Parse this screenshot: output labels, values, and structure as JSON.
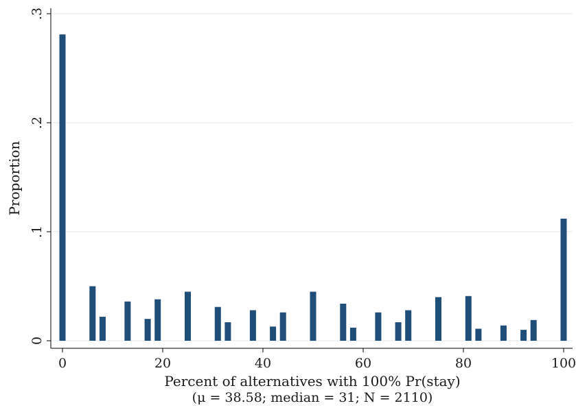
{
  "chart_data": {
    "type": "bar",
    "title": "",
    "xlabel": "Percent of alternatives with 100% Pr(stay)",
    "note": "(μ = 38.58; median = 31; N = 2110)",
    "ylabel": "Proportion",
    "xlim": [
      0,
      100
    ],
    "ylim": [
      0,
      0.3
    ],
    "xticks": [
      0,
      20,
      40,
      60,
      80,
      100
    ],
    "xtick_labels": [
      "0",
      "20",
      "40",
      "60",
      "80",
      "100"
    ],
    "yticks": [
      0,
      0.1,
      0.2,
      0.3
    ],
    "ytick_labels": [
      "0",
      ".1",
      ".2",
      ".3"
    ],
    "grid": true,
    "bar_color": "#1f4e79",
    "x": [
      0,
      6,
      8,
      13,
      17,
      19,
      25,
      31,
      33,
      38,
      42,
      44,
      50,
      56,
      58,
      63,
      67,
      69,
      75,
      81,
      83,
      88,
      92,
      94,
      100
    ],
    "values": [
      0.281,
      0.05,
      0.022,
      0.036,
      0.02,
      0.038,
      0.045,
      0.031,
      0.017,
      0.028,
      0.013,
      0.026,
      0.045,
      0.034,
      0.012,
      0.026,
      0.017,
      0.028,
      0.04,
      0.041,
      0.011,
      0.014,
      0.01,
      0.019,
      0.112
    ]
  }
}
